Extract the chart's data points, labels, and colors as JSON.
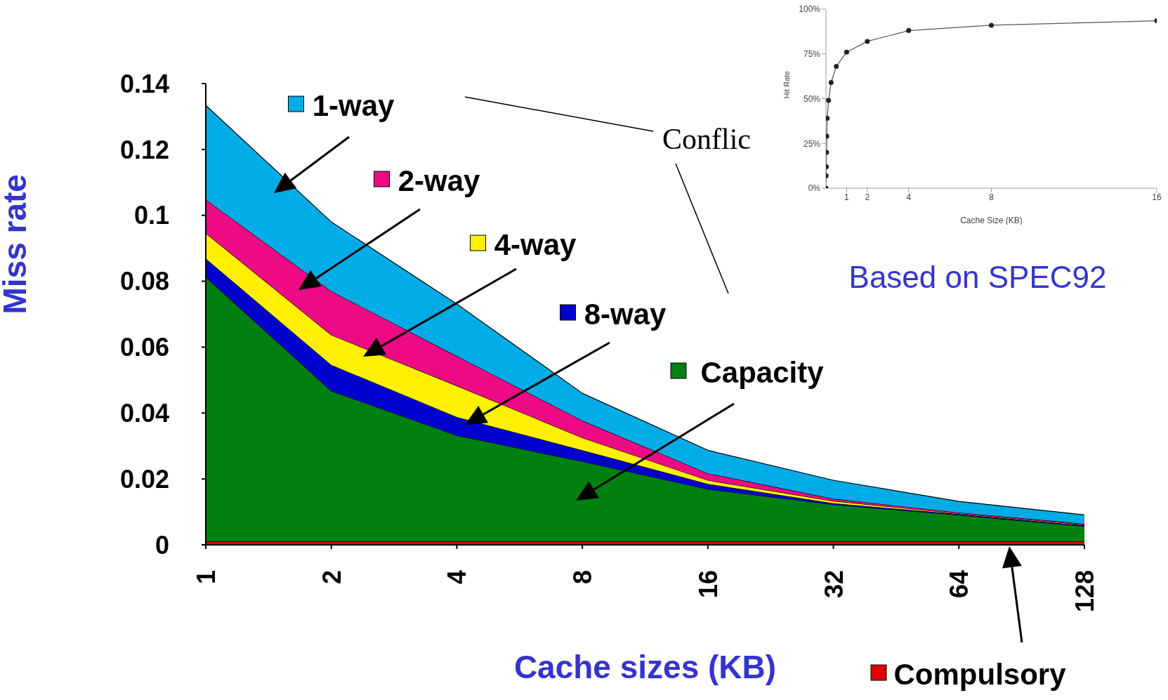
{
  "chart_data": [
    {
      "type": "area",
      "stacked": true,
      "xlabel": "Cache sizes (KB)",
      "ylabel": "Miss rate",
      "categories": [
        "1",
        "2",
        "4",
        "8",
        "16",
        "32",
        "64",
        "128"
      ],
      "ylim": [
        0,
        0.14
      ],
      "yticks": [
        0,
        0.02,
        0.04,
        0.06,
        0.08,
        0.1,
        0.12,
        0.14
      ],
      "series": [
        {
          "name": "Compulsory",
          "color": "#e00000",
          "values": [
            0.001,
            0.001,
            0.001,
            0.001,
            0.001,
            0.001,
            0.001,
            0.001
          ]
        },
        {
          "name": "Capacity",
          "color": "#008010",
          "values": [
            0.0803,
            0.0457,
            0.0322,
            0.0243,
            0.0159,
            0.0112,
            0.008,
            0.0046
          ]
        },
        {
          "name": "8-way",
          "color": "#0000cc",
          "values": [
            0.0056,
            0.0079,
            0.0056,
            0.0034,
            0.0016,
            0.0004,
            0.0003,
            0.0003
          ]
        },
        {
          "name": "4-way",
          "color": "#fff000",
          "values": [
            0.0077,
            0.0091,
            0.0095,
            0.0038,
            0.0011,
            0.0007,
            0.0002,
            0.0002
          ]
        },
        {
          "name": "2-way",
          "color": "#ee0a84",
          "values": [
            0.0102,
            0.0133,
            0.009,
            0.0052,
            0.0021,
            0.0007,
            0.0003,
            0.0003
          ]
        },
        {
          "name": "1-way",
          "color": "#00ace6",
          "values": [
            0.0286,
            0.021,
            0.0158,
            0.0083,
            0.007,
            0.0056,
            0.0034,
            0.0027
          ]
        }
      ],
      "annotations": [
        "Conflic",
        "Based on SPEC92"
      ],
      "legend": "bottom right"
    },
    {
      "type": "line",
      "xlabel": "Cache Size (KB)",
      "ylabel": "Hit Rate",
      "marker": "circle",
      "x": [
        0,
        0.01,
        0.02,
        0.03,
        0.04,
        0.06,
        0.125,
        0.25,
        0.5,
        1,
        2,
        4,
        8,
        16
      ],
      "values": [
        0,
        7,
        12,
        20,
        29,
        39,
        49,
        59,
        68,
        76,
        82,
        88,
        91,
        93.5
      ],
      "color": "#555555",
      "xlim": [
        0,
        16
      ],
      "xticks": [
        1,
        2,
        4,
        8,
        16
      ],
      "ylim": [
        0,
        100
      ],
      "yticks": [
        {
          "value": 0,
          "label": "0%"
        },
        {
          "value": 25,
          "label": "25%"
        },
        {
          "value": 50,
          "label": "50%"
        },
        {
          "value": 75,
          "label": "75%"
        },
        {
          "value": 100,
          "label": "100%"
        }
      ]
    }
  ]
}
